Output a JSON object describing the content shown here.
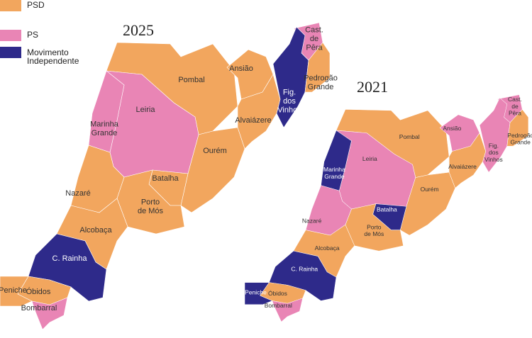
{
  "legend": [
    {
      "label": [
        "PSD"
      ],
      "color": "#f2a65e"
    },
    {
      "label": [
        "PS"
      ],
      "color": "#e985b5"
    },
    {
      "label": [
        "Movimento",
        "Independente"
      ],
      "color": "#2e2a8a"
    }
  ],
  "maps": [
    {
      "year": "2025",
      "regions": [
        {
          "name": [
            "Pombal"
          ],
          "color": "#f2a65e"
        },
        {
          "name": [
            "Leiria"
          ],
          "color": "#e985b5"
        },
        {
          "name": [
            "Marinha",
            "Grande"
          ],
          "color": "#e985b5"
        },
        {
          "name": [
            "Ansião"
          ],
          "color": "#f2a65e"
        },
        {
          "name": [
            "Cast.",
            "de",
            "Pêra"
          ],
          "color": "#e985b5"
        },
        {
          "name": [
            "Fig.",
            "dos",
            "Vinhos"
          ],
          "color": "#2e2a8a"
        },
        {
          "name": [
            "Pedrogão",
            "Grande"
          ],
          "color": "#f2a65e"
        },
        {
          "name": [
            "Alvaiázere"
          ],
          "color": "#f2a65e"
        },
        {
          "name": [
            "Ourém"
          ],
          "color": "#f2a65e"
        },
        {
          "name": [
            "Batalha"
          ],
          "color": "#f2a65e"
        },
        {
          "name": [
            "Porto",
            "de Mós"
          ],
          "color": "#f2a65e"
        },
        {
          "name": [
            "Nazaré"
          ],
          "color": "#f2a65e"
        },
        {
          "name": [
            "Alcobaça"
          ],
          "color": "#f2a65e"
        },
        {
          "name": [
            "C. Rainha"
          ],
          "color": "#2e2a8a"
        },
        {
          "name": [
            "Óbidos"
          ],
          "color": "#f2a65e"
        },
        {
          "name": [
            "Peniche"
          ],
          "color": "#f2a65e"
        },
        {
          "name": [
            "Bombarral"
          ],
          "color": "#e985b5"
        }
      ]
    },
    {
      "year": "2021",
      "regions": [
        {
          "name": [
            "Pombal"
          ],
          "color": "#f2a65e"
        },
        {
          "name": [
            "Leiria"
          ],
          "color": "#e985b5"
        },
        {
          "name": [
            "Marinha",
            "Grande"
          ],
          "color": "#2e2a8a"
        },
        {
          "name": [
            "Ansião"
          ],
          "color": "#e985b5"
        },
        {
          "name": [
            "Cast.",
            "de",
            "Pêra"
          ],
          "color": "#e985b5"
        },
        {
          "name": [
            "Fig.",
            "dos",
            "Vinhos"
          ],
          "color": "#e985b5"
        },
        {
          "name": [
            "Pedrogão",
            "Grande"
          ],
          "color": "#f2a65e"
        },
        {
          "name": [
            "Alvaiázere"
          ],
          "color": "#f2a65e"
        },
        {
          "name": [
            "Ourém"
          ],
          "color": "#f2a65e"
        },
        {
          "name": [
            "Batalha"
          ],
          "color": "#2e2a8a"
        },
        {
          "name": [
            "Porto",
            "de Mós"
          ],
          "color": "#f2a65e"
        },
        {
          "name": [
            "Nazaré"
          ],
          "color": "#e985b5"
        },
        {
          "name": [
            "Alcobaça"
          ],
          "color": "#f2a65e"
        },
        {
          "name": [
            "C. Rainha"
          ],
          "color": "#2e2a8a"
        },
        {
          "name": [
            "Óbidos"
          ],
          "color": "#f2a65e"
        },
        {
          "name": [
            "Peniche"
          ],
          "color": "#2e2a8a"
        },
        {
          "name": [
            "Bombarral"
          ],
          "color": "#e985b5"
        }
      ]
    }
  ]
}
